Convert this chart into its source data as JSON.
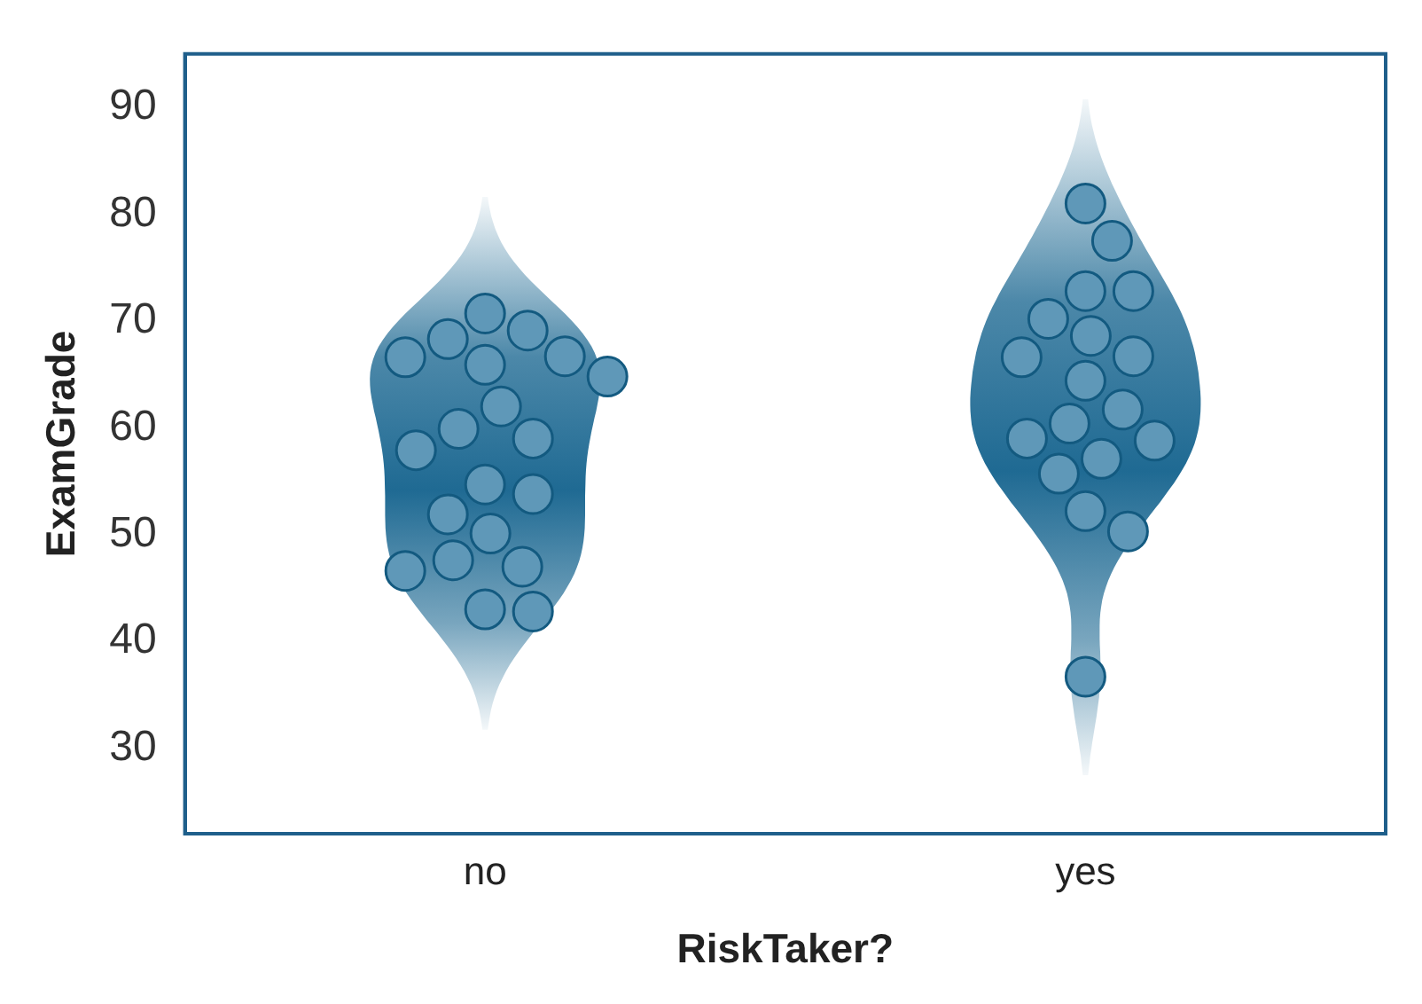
{
  "chart_data": {
    "type": "scatter",
    "xlabel": "RiskTaker?",
    "ylabel": "ExamGrade",
    "categories": [
      "no",
      "yes"
    ],
    "series": [
      {
        "type": "scatter",
        "color": "#5f98b8",
        "x": [
          "no",
          "no",
          "no",
          "no",
          "no",
          "no",
          "no",
          "no",
          "no",
          "no",
          "no",
          "no",
          "no",
          "no",
          "no",
          "no",
          "no",
          "no",
          "no",
          "no"
        ],
        "values": [
          70.7,
          69.1,
          66.6,
          68.3,
          66.7,
          65.9,
          64.8,
          62.0,
          59.9,
          59.0,
          57.9,
          51.9,
          53.8,
          54.7,
          50.1,
          47.0,
          47.6,
          46.6,
          43.0,
          42.8
        ]
      },
      {
        "type": "scatter",
        "color": "#5f98b8",
        "x": [
          "yes",
          "yes",
          "yes",
          "yes",
          "yes",
          "yes",
          "yes",
          "yes",
          "yes",
          "yes",
          "yes",
          "yes",
          "yes",
          "yes",
          "yes",
          "yes",
          "yes",
          "yes"
        ],
        "values": [
          81.0,
          77.5,
          72.8,
          72.8,
          70.2,
          68.6,
          66.7,
          66.6,
          64.4,
          58.8,
          57.1,
          60.4,
          59.0,
          61.7,
          55.7,
          52.2,
          50.3,
          36.7
        ]
      }
    ],
    "ylim": [
      22,
      95
    ],
    "yticks": [
      30,
      40,
      50,
      60,
      70,
      80,
      90
    ],
    "grid": false,
    "legend": false,
    "marker": "circle"
  }
}
